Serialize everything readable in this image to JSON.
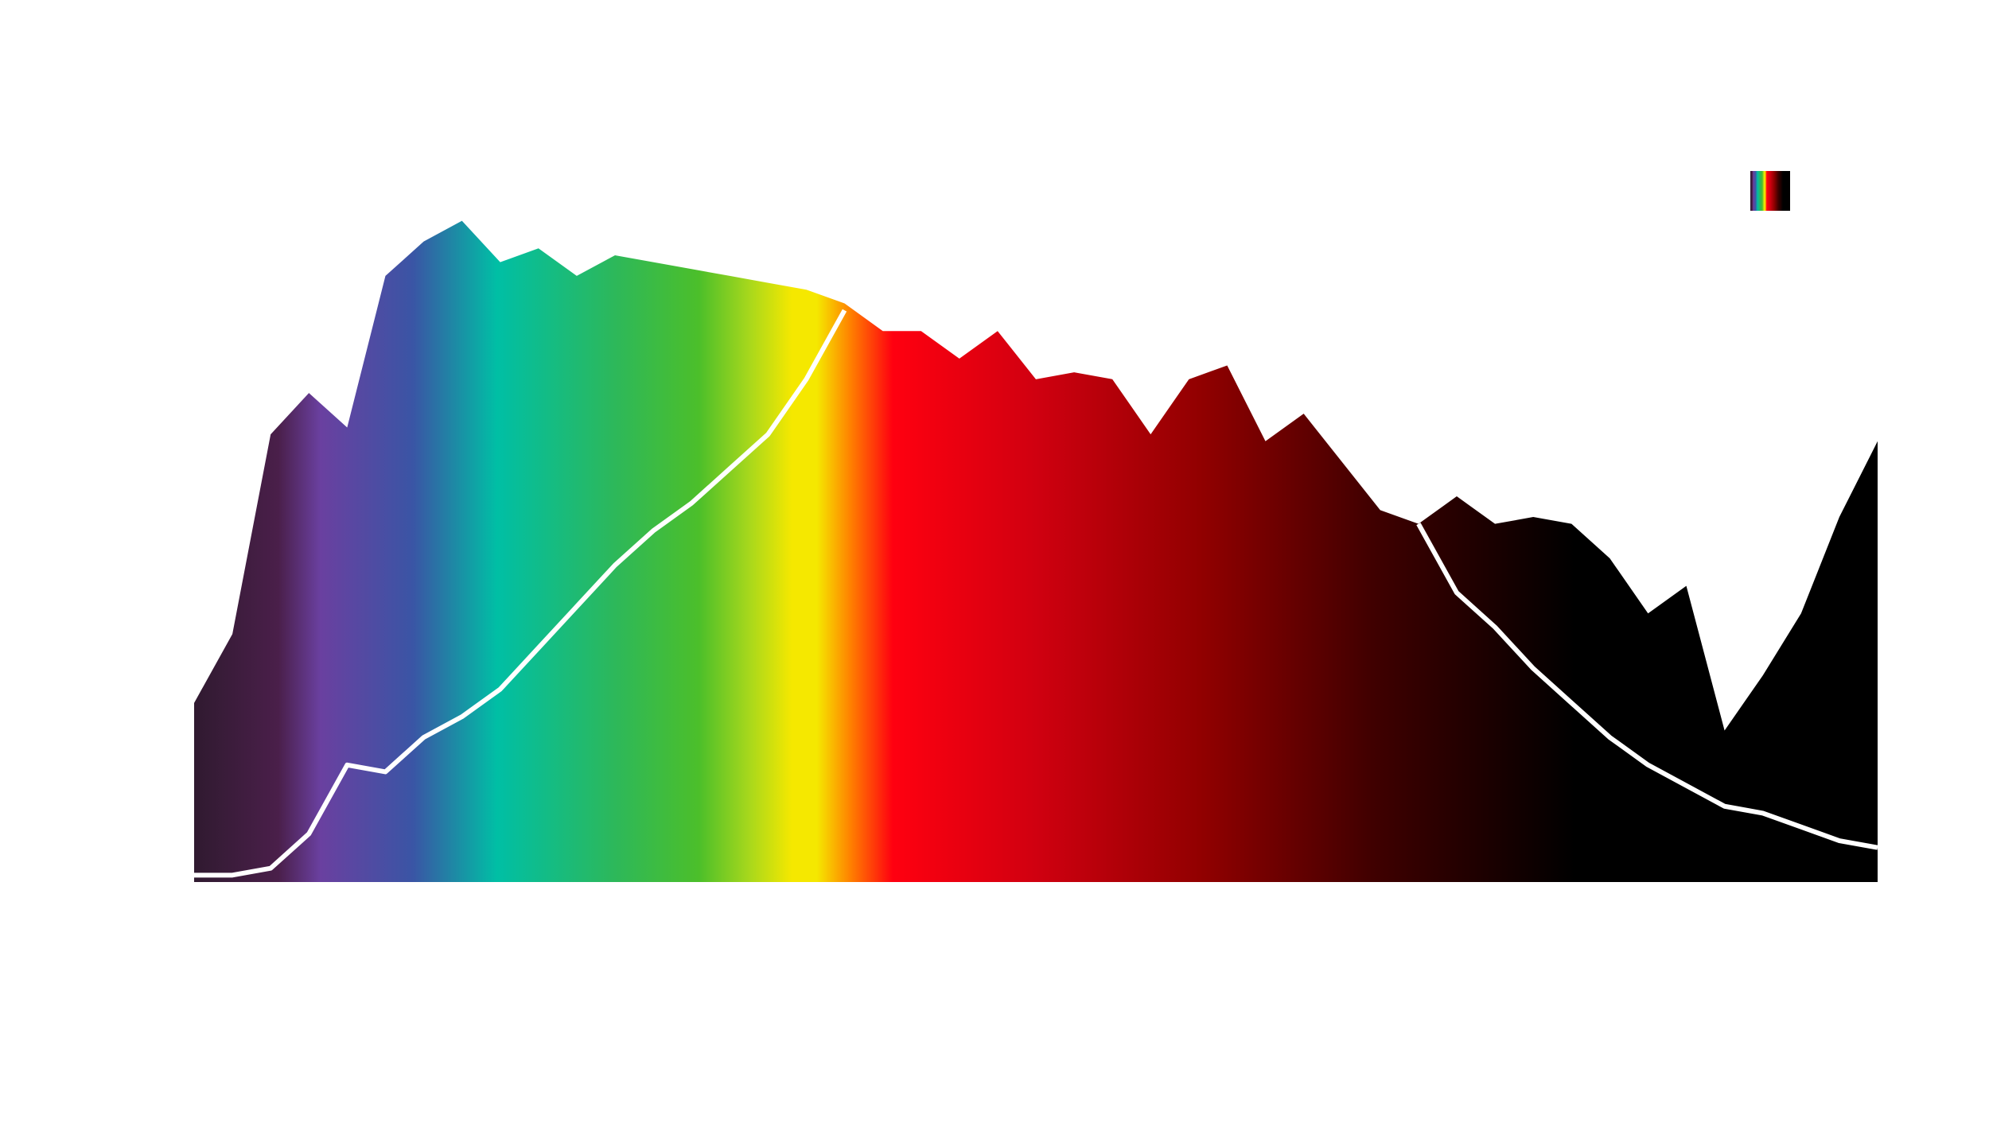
{
  "chart_data": {
    "type": "area",
    "ylim": [
      0,
      100
    ],
    "series": [
      {
        "color": [
          "#301a30",
          "#4a1f4a",
          "#6a40a0",
          "#3a55a5",
          "#00bfa5",
          "#2db85a",
          "#4cbf2a",
          "#a8d81c",
          "#f5e800",
          "#f5e800",
          "#ff8000",
          "#ff0010",
          "#d00010",
          "#900000",
          "#400000",
          "#150000",
          "#000000",
          "#000000"
        ],
        "values": [
          26,
          36,
          65,
          71,
          66,
          88,
          93,
          96,
          90,
          92,
          88,
          91,
          90,
          89,
          88,
          87,
          86,
          84,
          80,
          80,
          76,
          80,
          73,
          74,
          73,
          65,
          73,
          75,
          64,
          68,
          61,
          54,
          52,
          56,
          52,
          53,
          52,
          47,
          39,
          43,
          22,
          30,
          39,
          53,
          64
        ]
      },
      {
        "color": "#ffffff",
        "values": [
          1,
          1,
          2,
          7,
          17,
          16,
          21,
          24,
          28,
          34,
          40,
          46,
          51,
          55,
          60,
          65,
          73,
          83,
          null,
          null,
          null,
          null,
          null,
          null,
          null,
          null,
          null,
          null,
          null,
          null,
          null,
          null,
          52,
          42,
          37,
          31,
          26,
          21,
          17,
          14,
          11,
          10,
          8,
          6,
          5
        ]
      }
    ]
  }
}
